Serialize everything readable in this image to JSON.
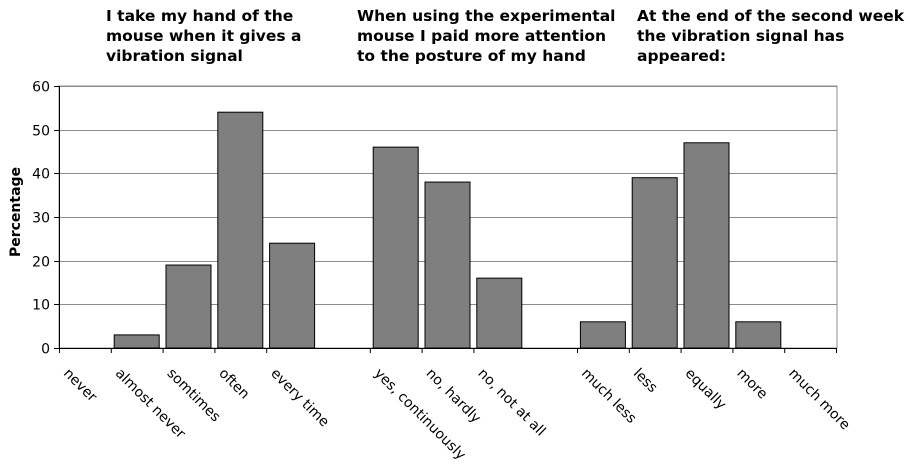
{
  "headings": [
    "I take my hand of the\nmouse when it gives a\nvibration signal",
    "When using the experimental\nmouse I paid more attention\nto the posture of my hand",
    "At the end of the second week\nthe vibration signal has\nappeared:"
  ],
  "chart_data": {
    "type": "bar",
    "ylabel": "Percentage",
    "ylim": [
      0,
      60
    ],
    "yticks": [
      0,
      10,
      20,
      30,
      40,
      50,
      60
    ],
    "grid": true,
    "bar_color": "#7f7f7f",
    "groups": [
      {
        "categories": [
          "never",
          "almost never",
          "somtimes",
          "often",
          "every time"
        ],
        "values": [
          0,
          3,
          19,
          54,
          24
        ]
      },
      {
        "categories": [
          "yes, continuously",
          "no, hardly",
          "no, not at all"
        ],
        "values": [
          46,
          38,
          16
        ]
      },
      {
        "categories": [
          "much less",
          "less",
          "equally",
          "more",
          "much more"
        ],
        "values": [
          6,
          39,
          47,
          6,
          0
        ]
      }
    ]
  }
}
